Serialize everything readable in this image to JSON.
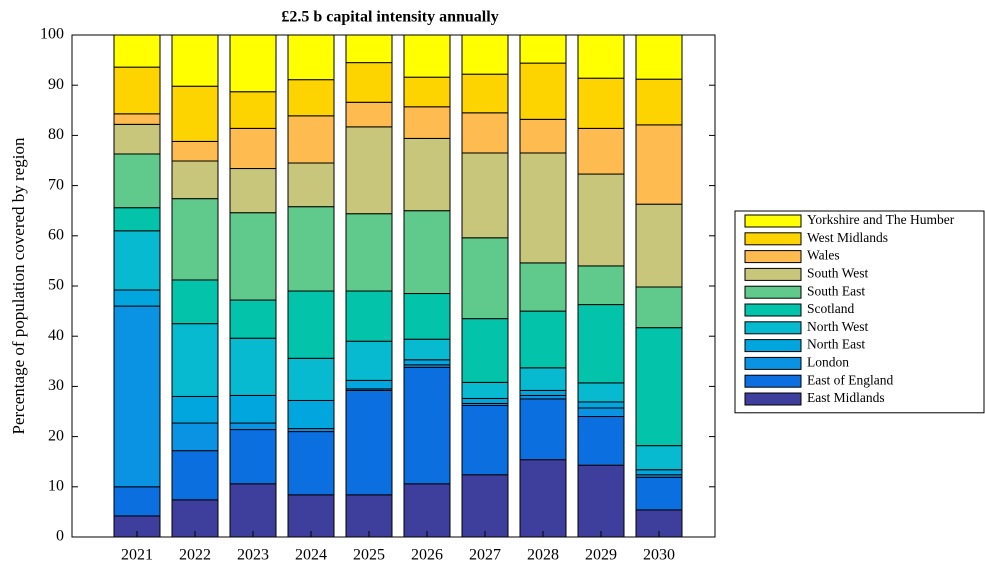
{
  "chart_data": {
    "type": "stacked_bar",
    "title": "£2.5 b capital intensity annually",
    "y_label": "Percentage of population covered by region",
    "categories": [
      "2021",
      "2022",
      "2023",
      "2024",
      "2025",
      "2026",
      "2027",
      "2028",
      "2029",
      "2030"
    ],
    "ylim": [
      0,
      100
    ],
    "yticks": [
      0,
      10,
      20,
      30,
      40,
      50,
      60,
      70,
      80,
      90,
      100
    ],
    "series": [
      {
        "name": "East Midlands",
        "color": "#3e3e9c",
        "values": [
          4.2,
          7.4,
          10.6,
          8.4,
          8.4,
          10.6,
          12.4,
          15.4,
          14.3,
          5.4
        ]
      },
      {
        "name": "East of England",
        "color": "#0b6fe0",
        "values": [
          5.8,
          9.8,
          10.8,
          12.6,
          20.8,
          23.2,
          13.8,
          12.1,
          9.7,
          6.5
        ]
      },
      {
        "name": "London",
        "color": "#0b93e3",
        "values": [
          36,
          5.5,
          1.3,
          0.6,
          0.3,
          0.5,
          0.4,
          0.7,
          1.7,
          0.5
        ]
      },
      {
        "name": "North East",
        "color": "#02a6de",
        "values": [
          3.2,
          5.3,
          5.5,
          5.6,
          1.7,
          1.0,
          1.0,
          1.0,
          1.2,
          1.0
        ]
      },
      {
        "name": "North West",
        "color": "#08bad0",
        "values": [
          11.8,
          14.5,
          11.4,
          8.4,
          7.8,
          4.1,
          3.2,
          4.5,
          3.8,
          4.8
        ]
      },
      {
        "name": "Scotland",
        "color": "#03c4aa",
        "values": [
          4.6,
          8.7,
          7.6,
          13.4,
          10.0,
          9.1,
          12.7,
          11.3,
          15.6,
          23.5
        ]
      },
      {
        "name": "South East",
        "color": "#60ca8c",
        "values": [
          10.7,
          16.2,
          17.4,
          16.8,
          15.4,
          16.5,
          16.1,
          9.6,
          7.7,
          8.1
        ]
      },
      {
        "name": "South West",
        "color": "#c7c67a",
        "values": [
          5.9,
          7.5,
          8.8,
          8.7,
          17.3,
          14.4,
          16.9,
          21.9,
          18.3,
          16.5
        ]
      },
      {
        "name": "Wales",
        "color": "#fdbb50",
        "values": [
          2.1,
          3.9,
          8.0,
          9.4,
          4.9,
          6.3,
          8.0,
          6.7,
          9.1,
          15.8
        ]
      },
      {
        "name": "West Midlands",
        "color": "#fdd300",
        "values": [
          9.3,
          11.0,
          7.3,
          7.2,
          7.9,
          5.9,
          7.7,
          11.2,
          10.0,
          9.1
        ]
      },
      {
        "name": "Yorkshire and The Humber",
        "color": "#ffff00",
        "values": [
          6.4,
          10.2,
          11.3,
          8.9,
          5.5,
          8.4,
          7.8,
          5.6,
          8.6,
          8.8
        ]
      }
    ]
  }
}
